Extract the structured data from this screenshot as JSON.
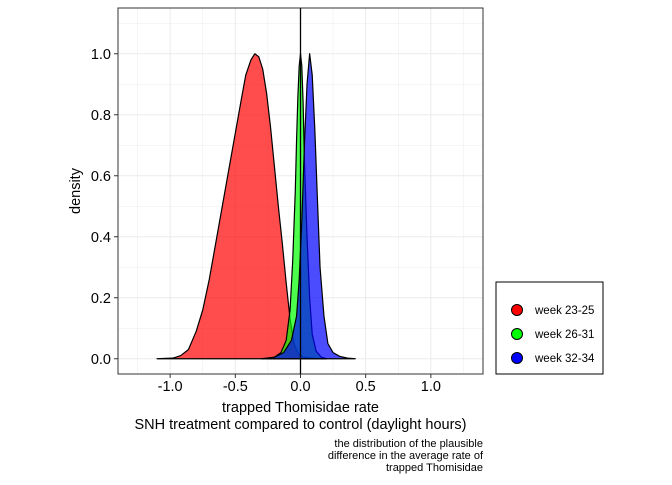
{
  "chart_data": {
    "type": "area",
    "xlabel_lines": [
      "trapped Thomisidae rate",
      "SNH treatment compared to control (daylight hours)"
    ],
    "ylabel": "density",
    "caption_lines": [
      "the distribution of the plausible",
      "difference in the average rate of",
      "trapped Thomisidae"
    ],
    "xlim": [
      -1.4,
      1.4
    ],
    "ylim": [
      -0.05,
      1.15
    ],
    "x_ticks": [
      -1.0,
      -0.5,
      0.0,
      0.5,
      1.0
    ],
    "x_tick_labels": [
      "-1.0",
      "-0.5",
      "0.0",
      "0.5",
      "1.0"
    ],
    "y_ticks": [
      0.0,
      0.2,
      0.4,
      0.6,
      0.8,
      1.0
    ],
    "y_tick_labels": [
      "0.0",
      "0.2",
      "0.4",
      "0.6",
      "0.8",
      "1.0"
    ],
    "reference_line_x": 0,
    "grid": true,
    "legend_position": "right",
    "series": [
      {
        "name": "week 23-25",
        "color": "#ff0000",
        "points": [
          [
            -1.1,
            0
          ],
          [
            -0.98,
            0.002
          ],
          [
            -0.92,
            0.01
          ],
          [
            -0.86,
            0.03
          ],
          [
            -0.8,
            0.09
          ],
          [
            -0.75,
            0.16
          ],
          [
            -0.7,
            0.26
          ],
          [
            -0.65,
            0.38
          ],
          [
            -0.6,
            0.5
          ],
          [
            -0.55,
            0.62
          ],
          [
            -0.5,
            0.74
          ],
          [
            -0.45,
            0.86
          ],
          [
            -0.42,
            0.93
          ],
          [
            -0.38,
            0.98
          ],
          [
            -0.35,
            1.0
          ],
          [
            -0.32,
            0.99
          ],
          [
            -0.29,
            0.95
          ],
          [
            -0.26,
            0.87
          ],
          [
            -0.23,
            0.76
          ],
          [
            -0.2,
            0.63
          ],
          [
            -0.17,
            0.5
          ],
          [
            -0.14,
            0.38
          ],
          [
            -0.11,
            0.25
          ],
          [
            -0.08,
            0.13
          ],
          [
            -0.05,
            0.05
          ],
          [
            -0.02,
            0.02
          ],
          [
            0.02,
            0.005
          ],
          [
            0.12,
            0.001
          ],
          [
            0.2,
            0
          ]
        ]
      },
      {
        "name": "week 26-31",
        "color": "#00ff00",
        "points": [
          [
            -0.25,
            0
          ],
          [
            -0.2,
            0.005
          ],
          [
            -0.15,
            0.02
          ],
          [
            -0.11,
            0.06
          ],
          [
            -0.08,
            0.16
          ],
          [
            -0.06,
            0.32
          ],
          [
            -0.04,
            0.55
          ],
          [
            -0.03,
            0.72
          ],
          [
            -0.02,
            0.86
          ],
          [
            -0.01,
            0.96
          ],
          [
            0.0,
            1.0
          ],
          [
            0.01,
            0.96
          ],
          [
            0.02,
            0.84
          ],
          [
            0.03,
            0.65
          ],
          [
            0.05,
            0.4
          ],
          [
            0.07,
            0.2
          ],
          [
            0.09,
            0.08
          ],
          [
            0.12,
            0.025
          ],
          [
            0.16,
            0.005
          ],
          [
            0.2,
            0
          ]
        ]
      },
      {
        "name": "week 32-34",
        "color": "#0000ff",
        "points": [
          [
            -0.3,
            0
          ],
          [
            -0.2,
            0.005
          ],
          [
            -0.13,
            0.02
          ],
          [
            -0.07,
            0.06
          ],
          [
            -0.03,
            0.14
          ],
          [
            -0.01,
            0.26
          ],
          [
            0.01,
            0.45
          ],
          [
            0.03,
            0.7
          ],
          [
            0.05,
            0.9
          ],
          [
            0.07,
            1.0
          ],
          [
            0.09,
            0.93
          ],
          [
            0.11,
            0.75
          ],
          [
            0.13,
            0.52
          ],
          [
            0.15,
            0.3
          ],
          [
            0.18,
            0.14
          ],
          [
            0.21,
            0.05
          ],
          [
            0.25,
            0.02
          ],
          [
            0.3,
            0.008
          ],
          [
            0.36,
            0.002
          ],
          [
            0.42,
            0
          ]
        ]
      }
    ]
  }
}
